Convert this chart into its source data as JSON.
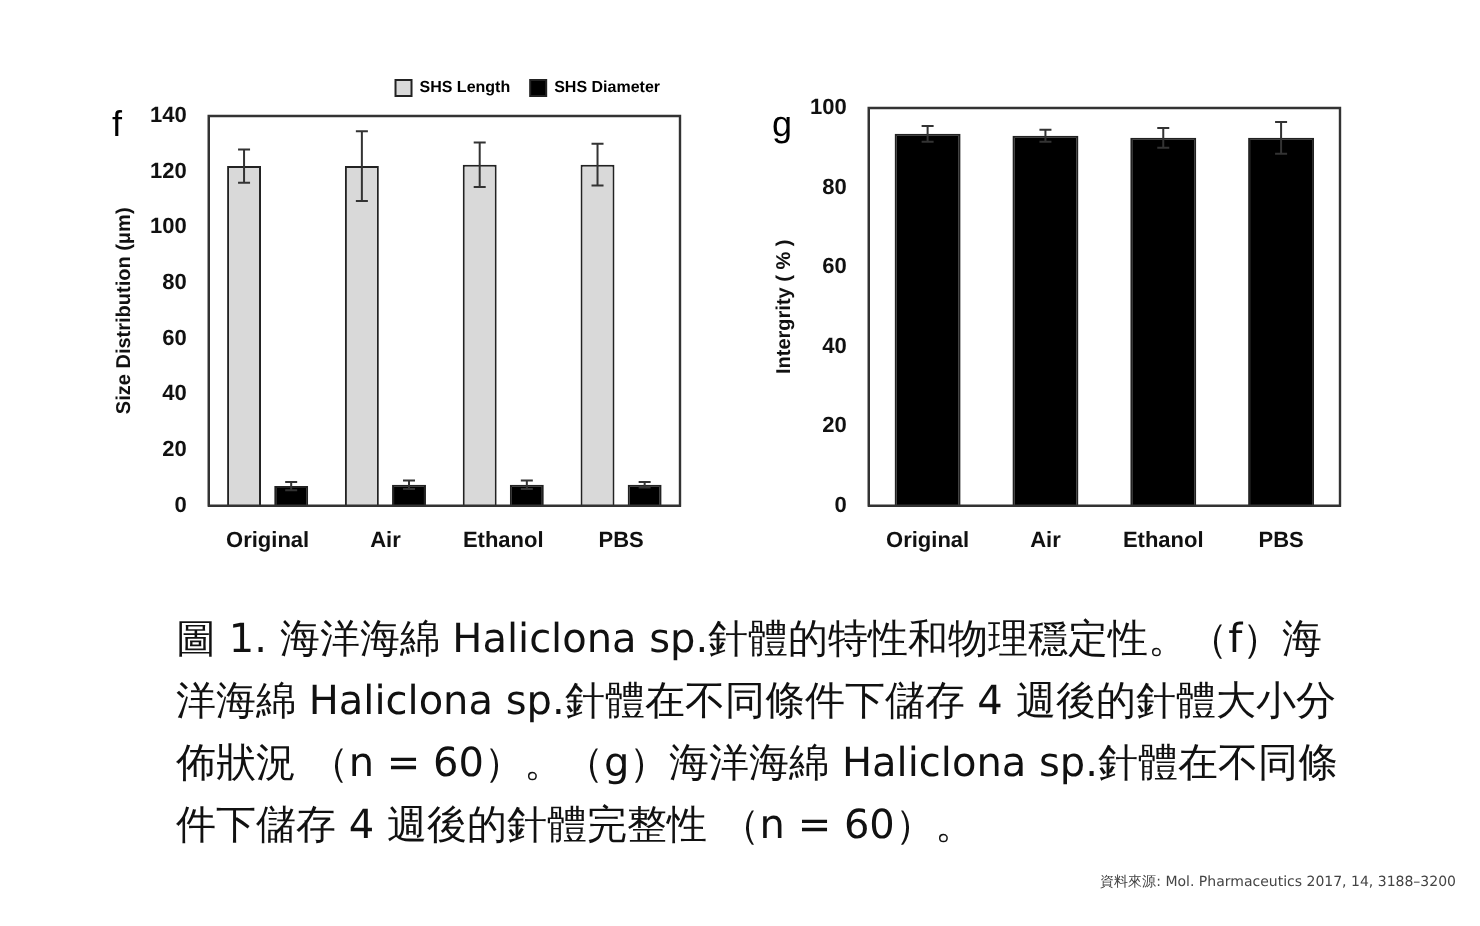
{
  "chart_data": [
    {
      "type": "bar",
      "ylabel": "Size Distribution (μm)",
      "categories": [
        "Original",
        "Air",
        "Ethanol",
        "PBS"
      ],
      "series": [
        {
          "name": "SHS Length",
          "color": "#d9d9d9",
          "values": [
            122,
            122,
            122.5,
            122.5
          ],
          "errors": [
            6,
            12.5,
            8,
            7.5
          ]
        },
        {
          "name": "SHS Diameter",
          "color": "#000000",
          "values": [
            7,
            7.5,
            7.5,
            7.5
          ],
          "errors": [
            1.5,
            1.5,
            1.5,
            1
          ]
        }
      ],
      "ylim": [
        0,
        140
      ],
      "yticks": [
        0,
        20,
        40,
        60,
        80,
        100,
        120,
        140
      ],
      "grid": false,
      "legend": "top right",
      "annotations": [
        "f"
      ]
    },
    {
      "type": "bar",
      "ylabel": "Intergrity ( % )",
      "categories": [
        "Original",
        "Air",
        "Ethanol",
        "PBS"
      ],
      "values": [
        93.5,
        93,
        92.5,
        92.5
      ],
      "errors": [
        2,
        1.5,
        2.5,
        4
      ],
      "color": "#000000",
      "ylim": [
        0,
        100
      ],
      "yticks": [
        0,
        20,
        40,
        60,
        80,
        100
      ],
      "grid": false,
      "legend": false,
      "annotations": [
        "g",
        "圖 1. 海洋海綿 Haliclona sp.針體的特性和物理穩定性。（f）海洋海綿 Haliclona sp.針體在不同條件下儲存 4 週後的針體大小分佈狀況 （n = 60）。（g）海洋海綿 Haliclona sp.針體在不同條件下儲存 4 週後的針體完整性 （n = 60）。",
        "資料來源: Mol. Pharmaceutics 2017, 14, 3188–3200"
      ]
    }
  ]
}
